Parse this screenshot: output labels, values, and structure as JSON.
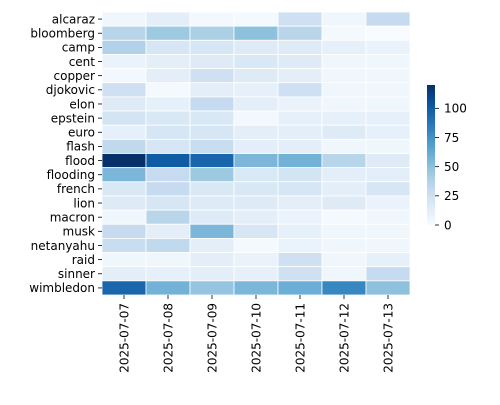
{
  "chart_data": {
    "type": "heatmap",
    "title": "",
    "xlabel": "",
    "ylabel": "",
    "rows": [
      "alcaraz",
      "bloomberg",
      "camp",
      "cent",
      "copper",
      "djokovic",
      "elon",
      "epstein",
      "euro",
      "flash",
      "flood",
      "flooding",
      "french",
      "lion",
      "macron",
      "musk",
      "netanyahu",
      "raid",
      "sinner",
      "wimbledon"
    ],
    "columns": [
      "2025-07-07",
      "2025-07-08",
      "2025-07-09",
      "2025-07-10",
      "2025-07-11",
      "2025-07-12",
      "2025-07-13"
    ],
    "values": [
      [
        5,
        12,
        3,
        2,
        25,
        5,
        30
      ],
      [
        35,
        45,
        40,
        50,
        35,
        2,
        0
      ],
      [
        38,
        20,
        20,
        15,
        15,
        10,
        8
      ],
      [
        8,
        12,
        15,
        18,
        15,
        5,
        5
      ],
      [
        3,
        12,
        25,
        15,
        12,
        5,
        5
      ],
      [
        25,
        2,
        12,
        10,
        25,
        5,
        5
      ],
      [
        15,
        10,
        30,
        12,
        8,
        5,
        5
      ],
      [
        22,
        18,
        18,
        3,
        10,
        10,
        10
      ],
      [
        10,
        20,
        20,
        12,
        12,
        15,
        10
      ],
      [
        32,
        20,
        28,
        12,
        12,
        5,
        5
      ],
      [
        120,
        100,
        95,
        55,
        58,
        35,
        15
      ],
      [
        55,
        30,
        45,
        18,
        22,
        12,
        12
      ],
      [
        18,
        30,
        18,
        18,
        20,
        12,
        20
      ],
      [
        15,
        20,
        15,
        15,
        12,
        15,
        8
      ],
      [
        5,
        35,
        15,
        12,
        8,
        2,
        5
      ],
      [
        30,
        12,
        55,
        20,
        10,
        5,
        5
      ],
      [
        28,
        32,
        12,
        2,
        8,
        5,
        5
      ],
      [
        5,
        5,
        12,
        8,
        25,
        5,
        10
      ],
      [
        12,
        10,
        12,
        10,
        25,
        5,
        30
      ],
      [
        95,
        58,
        48,
        55,
        60,
        80,
        50
      ]
    ],
    "colorbar": {
      "ticks": [
        0,
        25,
        50,
        75,
        100
      ],
      "range": [
        0,
        120
      ],
      "colormap": "Blues"
    },
    "gridlines": "white cell separators",
    "colors": {
      "low": "#f7fbff",
      "high": "#08306b"
    }
  }
}
